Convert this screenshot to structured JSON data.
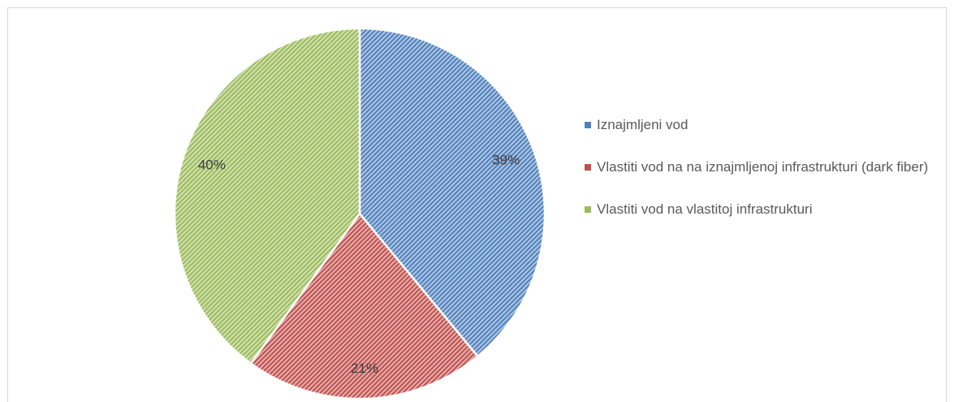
{
  "chart_data": {
    "type": "pie",
    "categories": [
      "Iznajmljeni vod",
      "Vlastiti vod na na iznajmljenoj infrastrukturi (dark fiber)",
      "Vlastiti vod na vlastitoj infrastrukturi"
    ],
    "values": [
      39,
      21,
      40
    ],
    "value_labels": [
      "39%",
      "21%",
      "40%"
    ],
    "colors": [
      "#4f81bd",
      "#c0504d",
      "#9bbb59"
    ],
    "legend": "right"
  }
}
